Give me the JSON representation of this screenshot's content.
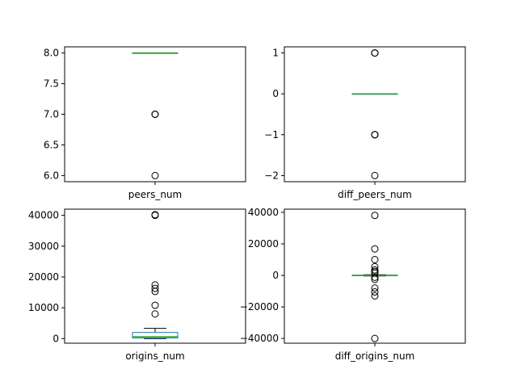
{
  "chart_data": [
    {
      "type": "box",
      "xlabel": "peers_num",
      "ylim": [
        5.9,
        8.1
      ],
      "yticks": [
        6.0,
        6.5,
        7.0,
        7.5,
        8.0
      ],
      "ytick_labels": [
        "6.0",
        "6.5",
        "7.0",
        "7.5",
        "8.0"
      ],
      "box": {
        "q1": 8,
        "median": 8,
        "q3": 8,
        "whisker_low": 8,
        "whisker_high": 8
      },
      "outliers": [
        7,
        7,
        7,
        6
      ],
      "grid": false
    },
    {
      "type": "box",
      "xlabel": "diff_peers_num",
      "ylim": [
        -2.15,
        1.15
      ],
      "yticks": [
        -2,
        -1,
        0,
        1
      ],
      "ytick_labels": [
        "−2",
        "−1",
        "0",
        "1"
      ],
      "box": {
        "q1": 0,
        "median": 0,
        "q3": 0,
        "whisker_low": 0,
        "whisker_high": 0
      },
      "outliers": [
        1,
        1,
        1,
        -1,
        -1,
        -1,
        -2
      ],
      "grid": false
    },
    {
      "type": "box",
      "xlabel": "origins_num",
      "ylim": [
        -1500,
        42000
      ],
      "yticks": [
        0,
        10000,
        20000,
        30000,
        40000
      ],
      "ytick_labels": [
        "0",
        "10000",
        "20000",
        "30000",
        "40000"
      ],
      "box": {
        "q1": 200,
        "median": 600,
        "q3": 2000,
        "whisker_low": 0,
        "whisker_high": 3300
      },
      "outliers": [
        40200,
        40000,
        17400,
        16300,
        15300,
        10800,
        8000
      ],
      "grid": false
    },
    {
      "type": "box",
      "xlabel": "diff_origins_num",
      "ylim": [
        -43000,
        42000
      ],
      "yticks": [
        -40000,
        -20000,
        0,
        20000,
        40000
      ],
      "ytick_labels": [
        "−40000",
        "−20000",
        "0",
        "20000",
        "40000"
      ],
      "box": {
        "q1": -100,
        "median": 0,
        "q3": 100,
        "whisker_low": -400,
        "whisker_high": 400
      },
      "outliers": [
        38000,
        16800,
        10000,
        5500,
        3500,
        2500,
        1500,
        -1200,
        -2500,
        -8000,
        -10500,
        -13000,
        -40000
      ],
      "grid": false
    }
  ],
  "colors": {
    "box": "#1f77b4",
    "median": "#2ca02c",
    "whisker": "#000000",
    "outlier": "#000000",
    "axes": "#000000",
    "background": "#ffffff"
  }
}
